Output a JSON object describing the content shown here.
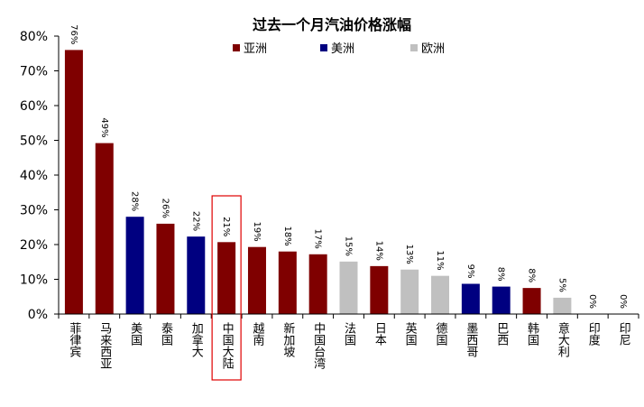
{
  "chart_data": {
    "type": "bar",
    "title": "过去一个月汽油价格涨幅",
    "xlabel": "",
    "ylabel": "",
    "ylim": [
      0,
      80
    ],
    "yticks": [
      "0%",
      "10%",
      "20%",
      "30%",
      "40%",
      "50%",
      "60%",
      "70%",
      "80%"
    ],
    "ytick_values": [
      0,
      10,
      20,
      30,
      40,
      50,
      60,
      70,
      80
    ],
    "legend_position": "top-center",
    "legend": [
      {
        "name": "亚洲",
        "color": "#7f0000"
      },
      {
        "name": "美洲",
        "color": "#000080"
      },
      {
        "name": "欧洲",
        "color": "#c0c0c0"
      }
    ],
    "categories": [
      "菲律宾",
      "马来西亚",
      "美国",
      "泰国",
      "加拿大",
      "中国大陆",
      "越南",
      "新加坡",
      "中国台湾",
      "法国",
      "日本",
      "英国",
      "德国",
      "墨西哥",
      "巴西",
      "韩国",
      "意大利",
      "印度",
      "印尼"
    ],
    "values": [
      76,
      49,
      28,
      26,
      22,
      21,
      19,
      18,
      17,
      15,
      14,
      13,
      11,
      9,
      8,
      8,
      5,
      0,
      0
    ],
    "value_labels": [
      "76%",
      "49%",
      "28%",
      "26%",
      "22%",
      "21%",
      "19%",
      "18%",
      "17%",
      "15%",
      "14%",
      "13%",
      "11%",
      "9%",
      "8%",
      "8%",
      "5%",
      "0%",
      "0%"
    ],
    "plot_values": [
      76,
      49.2,
      28,
      26,
      22.3,
      20.7,
      19.3,
      18,
      17.2,
      15.1,
      13.8,
      12.8,
      11,
      8.7,
      7.9,
      7.5,
      4.7,
      0,
      0
    ],
    "regions": [
      "亚洲",
      "亚洲",
      "美洲",
      "亚洲",
      "美洲",
      "亚洲",
      "亚洲",
      "亚洲",
      "亚洲",
      "欧洲",
      "亚洲",
      "欧洲",
      "欧洲",
      "美洲",
      "美洲",
      "亚洲",
      "欧洲",
      "亚洲",
      "亚洲"
    ],
    "highlight_category": "中国大陆",
    "highlight_color": "#e00000",
    "grid": false
  }
}
